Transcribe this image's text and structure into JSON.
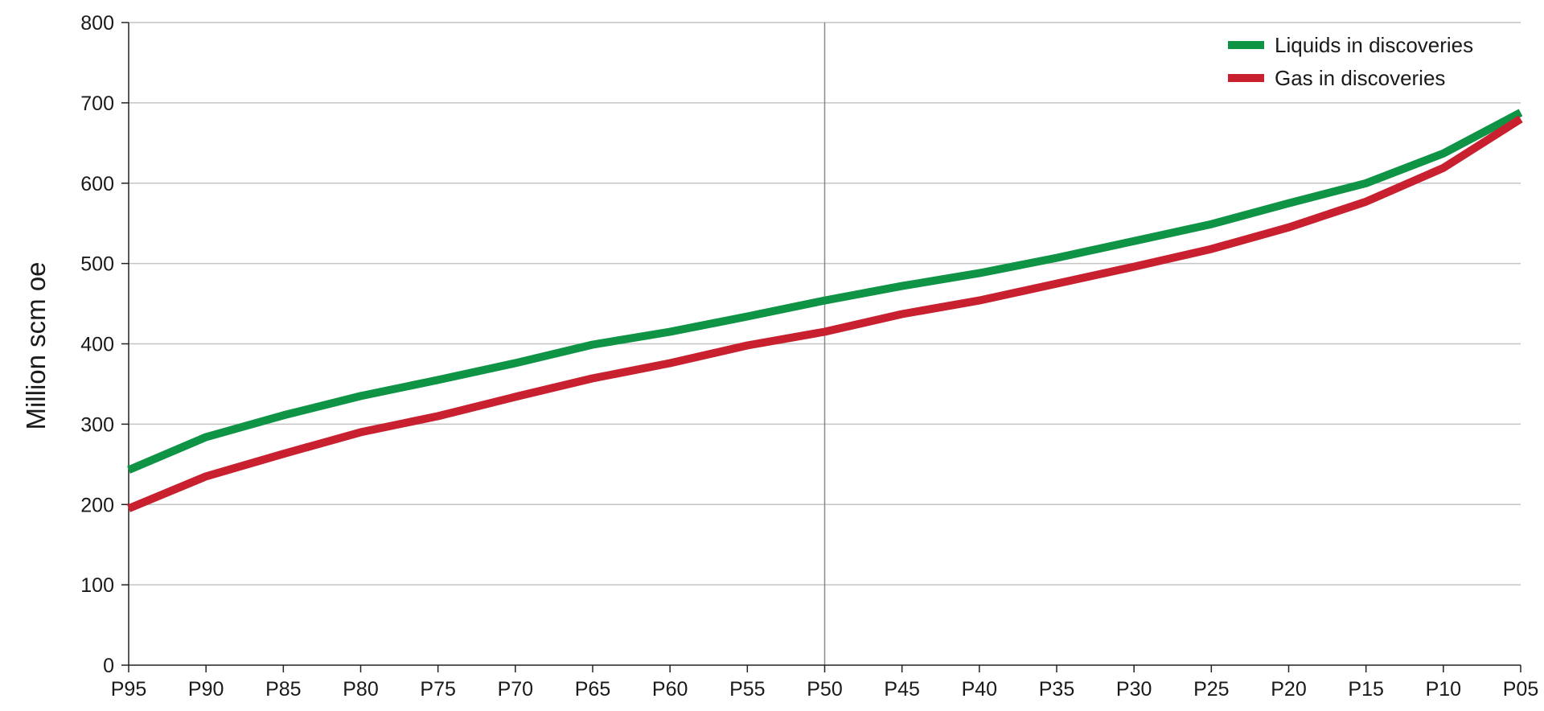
{
  "chart_data": {
    "type": "line",
    "title": "",
    "xlabel": "",
    "ylabel": "Million  scm oe",
    "ylim": [
      0,
      800
    ],
    "yticks": [
      "0",
      "100",
      "200",
      "300",
      "400",
      "500",
      "600",
      "700",
      "800"
    ],
    "categories": [
      "P95",
      "P90",
      "P85",
      "P80",
      "P75",
      "P70",
      "P65",
      "P60",
      "P55",
      "P50",
      "P45",
      "P40",
      "P35",
      "P30",
      "P25",
      "P20",
      "P15",
      "P10",
      "P05"
    ],
    "grid": true,
    "reference_line": "P50",
    "legend_position": "top-right",
    "series": [
      {
        "name": "Liquids in discoveries",
        "color": "#0f9446",
        "values": [
          243,
          284,
          311,
          335,
          355,
          376,
          399,
          415,
          434,
          454,
          472,
          488,
          507,
          528,
          549,
          575,
          600,
          637,
          688
        ]
      },
      {
        "name": "Gas in discoveries",
        "color": "#c8202f",
        "values": [
          195,
          235,
          263,
          290,
          310,
          334,
          357,
          376,
          398,
          415,
          437,
          454,
          475,
          496,
          518,
          545,
          577,
          619,
          680
        ]
      }
    ]
  }
}
